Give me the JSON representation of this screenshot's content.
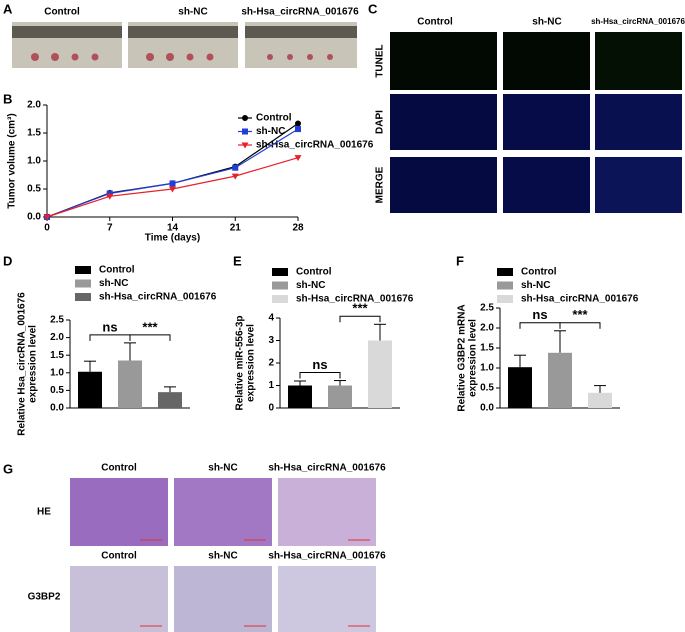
{
  "panel_labels": [
    "A",
    "B",
    "C",
    "D",
    "E",
    "F",
    "G"
  ],
  "panel_a": {
    "columns": [
      "Control",
      "sh-NC",
      "sh-Hsa_circRNA_001676"
    ]
  },
  "panel_c": {
    "columns": [
      "Control",
      "sh-NC",
      "sh-Hsa_circRNA_001676"
    ],
    "rows": [
      "TUNEL",
      "DAPI",
      "MERGE"
    ]
  },
  "panel_g": {
    "columns_he": [
      "Control",
      "sh-NC",
      "sh-Hsa_circRNA_001676"
    ],
    "columns_g3bp2": [
      "Control",
      "sh-NC",
      "sh-Hsa_circRNA_001676"
    ],
    "rows": [
      "HE",
      "G3BP2"
    ]
  },
  "chart_data": [
    {
      "type": "line",
      "xlabel": "Time (days)",
      "ylabel": [
        "Tumor volume (cm³)"
      ],
      "x": [
        0,
        7,
        14,
        21,
        28
      ],
      "xlim": [
        0,
        28
      ],
      "xticks": [
        0,
        7,
        14,
        21,
        28
      ],
      "ylim": [
        0,
        2.0
      ],
      "yticks": [
        {
          "value": 0,
          "label": "0.0"
        },
        0.5,
        {
          "value": 1.0,
          "label": "1.0"
        },
        1.5,
        {
          "value": 2.0,
          "label": "2.0"
        }
      ],
      "series": [
        {
          "name": "Control",
          "color": "#000000",
          "marker": "circle",
          "values": [
            0,
            0.43,
            0.6,
            0.9,
            1.67
          ]
        },
        {
          "name": "sh-NC",
          "color": "#1f3fd6",
          "marker": "square",
          "values": [
            0,
            0.42,
            0.6,
            0.88,
            1.57
          ]
        },
        {
          "name": "sh-Hsa_circRNA_001676",
          "color": "#e8202a",
          "marker": "triangle",
          "values": [
            0,
            0.37,
            0.5,
            0.73,
            1.06
          ]
        }
      ]
    },
    {
      "type": "bar",
      "ylabel": [
        "Relative Hsa_circRNA_001676",
        "expression level"
      ],
      "ylim": [
        0,
        2.5
      ],
      "yticks": [
        {
          "value": 0,
          "label": "0.0"
        },
        0.5,
        {
          "value": 1.0,
          "label": "1.0"
        },
        1.5,
        {
          "value": 2.0,
          "label": "2.0"
        },
        2.5
      ],
      "annotations": [
        "ns",
        "***"
      ],
      "series": [
        {
          "name": "Control",
          "color": "#000000",
          "values": [
            1.03
          ],
          "errors": [
            0.3
          ]
        },
        {
          "name": "sh-NC",
          "color": "#999999",
          "values": [
            1.35
          ],
          "errors": [
            0.5
          ]
        },
        {
          "name": "sh-Hsa_circRNA_001676",
          "color": "#666666",
          "values": [
            0.45
          ],
          "errors": [
            0.15
          ]
        }
      ]
    },
    {
      "type": "bar",
      "ylabel": [
        "Relative miR-556-3p",
        "expression level"
      ],
      "ylim": [
        0,
        4
      ],
      "yticks": [
        0,
        1,
        2,
        3,
        4
      ],
      "annotations": [
        "ns",
        "***"
      ],
      "series": [
        {
          "name": "Control",
          "color": "#000000",
          "values": [
            1.0
          ],
          "errors": [
            0.2
          ]
        },
        {
          "name": "sh-NC",
          "color": "#999999",
          "values": [
            1.0
          ],
          "errors": [
            0.22
          ]
        },
        {
          "name": "sh-Hsa_circRNA_001676",
          "color": "#d9d9d9",
          "values": [
            3.0
          ],
          "errors": [
            0.72
          ]
        }
      ]
    },
    {
      "type": "bar",
      "ylabel": [
        "Relative G3BP2 mRNA",
        "expression level"
      ],
      "ylim": [
        0,
        2.5
      ],
      "yticks": [
        {
          "value": 0,
          "label": "0.0"
        },
        0.5,
        {
          "value": 1.0,
          "label": "1.0"
        },
        1.5,
        {
          "value": 2.0,
          "label": "2.0"
        },
        2.5
      ],
      "annotations": [
        "ns",
        "***"
      ],
      "series": [
        {
          "name": "Control",
          "color": "#000000",
          "values": [
            1.02
          ],
          "errors": [
            0.3
          ]
        },
        {
          "name": "sh-NC",
          "color": "#999999",
          "values": [
            1.38
          ],
          "errors": [
            0.55
          ]
        },
        {
          "name": "sh-Hsa_circRNA_001676",
          "color": "#d9d9d9",
          "values": [
            0.38
          ],
          "errors": [
            0.18
          ]
        }
      ]
    }
  ]
}
